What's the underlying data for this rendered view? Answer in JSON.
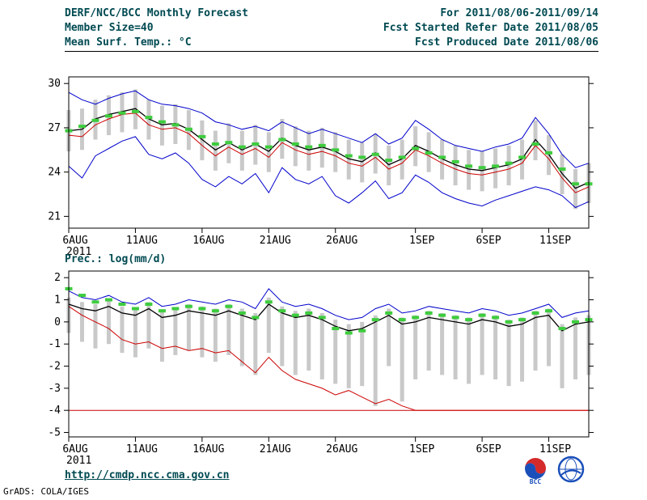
{
  "header": {
    "title": "DERF/NCC/BCC Monthly Forecast",
    "member_size": "Member Size=40",
    "var_label": "Mean Surf. Temp.: °C",
    "for_range": "For 2011/08/06-2011/09/14",
    "fcst_started": "Fcst Started Refer Date 2011/08/05",
    "fcst_produced": "Fcst Produced Date 2011/08/06"
  },
  "panel2_label": "Prec.: log(mm/d)",
  "footer": {
    "link": "http://cmdp.ncc.cma.gov.cn",
    "grads_credit": "GrADS: COLA/IGES",
    "bcc_logo_label": "BCC"
  },
  "colors": {
    "header_text": "#004a52",
    "spread_bar": "#c9c9c9",
    "envelope_blue": "#0000cc",
    "control_red": "#cc0000",
    "mean_black": "#000000",
    "obs_green": "#3ecc3e"
  },
  "chart_data": [
    {
      "type": "line",
      "name": "temp",
      "title": "Mean Surf. Temp.: °C",
      "n_points": 40,
      "ylim": [
        20.2,
        30.45
      ],
      "yticks": [
        21,
        24,
        27,
        30
      ],
      "x_tick_labels": [
        "6AUG",
        "11AUG",
        "16AUG",
        "21AUG",
        "26AUG",
        "1SEP",
        "6SEP",
        "11SEP"
      ],
      "x_tick_positions": [
        0,
        5,
        10,
        15,
        20,
        26,
        31,
        36
      ],
      "x_year_label": "2011",
      "legend_note": "gray bars = ensemble spread, blue = max/min envelope, black = ensemble mean, red = control run, green dashes = calibrated mean",
      "bars": {
        "color": "#c9c9c9",
        "high": [
          28.2,
          28.3,
          28.9,
          29.2,
          29.4,
          29.6,
          28.9,
          28.5,
          28.6,
          28.2,
          27.5,
          26.8,
          27.3,
          26.8,
          27.2,
          26.7,
          27.6,
          27.1,
          26.8,
          27.0,
          26.7,
          26.2,
          26.0,
          26.6,
          25.8,
          26.2,
          27.1,
          26.7,
          26.2,
          25.8,
          25.5,
          25.4,
          25.6,
          25.8,
          26.2,
          27.5,
          26.5,
          25.2,
          24.2,
          24.6
        ],
        "low": [
          25.4,
          25.5,
          26.2,
          26.5,
          26.7,
          26.9,
          26.2,
          25.8,
          25.9,
          25.5,
          24.8,
          24.1,
          24.6,
          24.1,
          24.5,
          24.0,
          24.9,
          24.4,
          24.1,
          24.3,
          24.0,
          23.5,
          23.3,
          23.9,
          23.1,
          23.5,
          24.4,
          24.0,
          23.5,
          23.1,
          22.8,
          22.7,
          22.9,
          23.1,
          23.5,
          24.8,
          23.8,
          22.5,
          21.5,
          21.9
        ]
      },
      "series": [
        {
          "name": "ens-max",
          "color": "#0000cc",
          "width": 1,
          "values": [
            29.4,
            28.9,
            28.6,
            29.0,
            29.3,
            29.5,
            28.9,
            28.6,
            28.5,
            28.3,
            28.0,
            27.4,
            27.2,
            26.9,
            27.1,
            26.8,
            27.4,
            27.0,
            26.6,
            26.9,
            26.6,
            26.3,
            26.0,
            26.6,
            25.9,
            26.3,
            27.5,
            26.9,
            26.2,
            25.8,
            25.6,
            25.4,
            25.7,
            25.9,
            26.3,
            27.7,
            26.6,
            25.2,
            24.3,
            24.6
          ]
        },
        {
          "name": "ens-min",
          "color": "#0000cc",
          "width": 1,
          "values": [
            24.4,
            23.6,
            25.1,
            25.6,
            26.1,
            26.4,
            25.2,
            24.9,
            25.3,
            24.6,
            23.5,
            23.0,
            23.7,
            23.2,
            23.9,
            22.6,
            24.3,
            23.5,
            23.2,
            23.7,
            22.4,
            21.9,
            22.6,
            23.4,
            22.2,
            22.6,
            23.8,
            23.3,
            22.6,
            22.2,
            21.9,
            21.7,
            22.1,
            22.4,
            22.7,
            23.0,
            22.8,
            22.4,
            21.6,
            22.0
          ]
        },
        {
          "name": "control",
          "color": "#cc0000",
          "width": 1,
          "values": [
            26.5,
            26.4,
            27.2,
            27.6,
            27.9,
            28.0,
            27.2,
            26.9,
            27.0,
            26.6,
            25.8,
            25.1,
            25.7,
            25.2,
            25.6,
            25.0,
            26.0,
            25.5,
            25.2,
            25.4,
            25.1,
            24.6,
            24.4,
            25.0,
            24.2,
            24.6,
            25.5,
            25.1,
            24.6,
            24.2,
            23.9,
            23.8,
            24.0,
            24.2,
            24.6,
            25.8,
            24.9,
            23.6,
            22.6,
            23.0
          ]
        },
        {
          "name": "ens-mean",
          "color": "#000000",
          "width": 1.3,
          "values": [
            26.8,
            26.9,
            27.6,
            27.9,
            28.1,
            28.3,
            27.6,
            27.2,
            27.3,
            26.9,
            26.2,
            25.5,
            26.0,
            25.5,
            25.9,
            25.4,
            26.3,
            25.8,
            25.5,
            25.7,
            25.4,
            24.9,
            24.7,
            25.3,
            24.5,
            24.9,
            25.8,
            25.4,
            24.9,
            24.5,
            24.2,
            24.1,
            24.3,
            24.5,
            24.9,
            26.2,
            25.2,
            23.9,
            22.9,
            23.3
          ]
        },
        {
          "name": "calibrated-mean",
          "color": "#3ecc3e",
          "style": "dash",
          "width": 4,
          "values": [
            26.8,
            27.1,
            27.5,
            27.8,
            28.0,
            28.1,
            27.7,
            27.4,
            27.2,
            26.9,
            26.4,
            25.9,
            26.0,
            25.7,
            25.9,
            25.7,
            26.2,
            25.9,
            25.7,
            25.8,
            25.5,
            25.1,
            25.0,
            25.2,
            24.8,
            25.0,
            25.6,
            25.3,
            25.0,
            24.7,
            24.4,
            24.3,
            24.4,
            24.6,
            25.0,
            25.9,
            25.3,
            24.2,
            23.2,
            23.2
          ]
        }
      ]
    },
    {
      "type": "line",
      "name": "precip",
      "title": "Prec.: log(mm/d)",
      "n_points": 40,
      "ylim": [
        -5.2,
        2.3
      ],
      "yticks": [
        -5,
        -4,
        -3,
        -2,
        -1,
        0,
        1,
        2
      ],
      "x_tick_labels": [
        "6AUG",
        "11AUG",
        "16AUG",
        "21AUG",
        "26AUG",
        "1SEP",
        "6SEP",
        "11SEP"
      ],
      "x_tick_positions": [
        0,
        5,
        10,
        15,
        20,
        26,
        31,
        36
      ],
      "x_year_label": "2011",
      "floor_line": {
        "color": "#cc0000",
        "value": -4
      },
      "bars": {
        "color": "#c9c9c9",
        "high": [
          1.1,
          0.9,
          0.8,
          1.0,
          0.7,
          0.6,
          0.9,
          0.5,
          0.6,
          0.8,
          0.7,
          0.6,
          0.8,
          0.6,
          0.4,
          1.1,
          0.7,
          0.5,
          0.6,
          0.4,
          0.1,
          -0.1,
          0.0,
          0.3,
          0.6,
          0.2,
          0.3,
          0.5,
          0.4,
          0.3,
          0.2,
          0.4,
          0.3,
          0.1,
          0.2,
          0.5,
          0.6,
          -0.1,
          0.2,
          0.3
        ],
        "low": [
          -0.5,
          -0.9,
          -1.2,
          -1.0,
          -1.4,
          -1.6,
          -1.2,
          -1.8,
          -1.5,
          -1.3,
          -1.6,
          -1.8,
          -1.5,
          -2.0,
          -2.4,
          -1.4,
          -2.0,
          -2.4,
          -2.2,
          -2.6,
          -2.8,
          -3.0,
          -2.9,
          -3.8,
          -2.0,
          -3.6,
          -2.6,
          -2.2,
          -2.4,
          -2.6,
          -2.8,
          -2.4,
          -2.6,
          -2.9,
          -2.7,
          -2.2,
          -2.0,
          -3.0,
          -2.6,
          -2.4
        ]
      },
      "series": [
        {
          "name": "ens-max",
          "color": "#0000cc",
          "width": 1,
          "values": [
            1.4,
            1.1,
            1.0,
            1.2,
            0.9,
            0.8,
            1.1,
            0.7,
            0.8,
            1.0,
            0.9,
            0.8,
            1.0,
            0.9,
            0.6,
            1.5,
            0.9,
            0.7,
            0.8,
            0.6,
            0.3,
            0.1,
            0.2,
            0.6,
            0.8,
            0.4,
            0.5,
            0.7,
            0.6,
            0.5,
            0.4,
            0.6,
            0.5,
            0.3,
            0.4,
            0.6,
            0.8,
            0.2,
            0.4,
            0.5
          ]
        },
        {
          "name": "control",
          "color": "#cc0000",
          "width": 1,
          "values": [
            0.7,
            0.3,
            0.0,
            -0.3,
            -0.8,
            -1.0,
            -0.9,
            -1.2,
            -1.1,
            -1.3,
            -1.2,
            -1.4,
            -1.3,
            -1.8,
            -2.3,
            -1.6,
            -2.2,
            -2.6,
            -2.8,
            -3.0,
            -3.3,
            -3.1,
            -3.4,
            -3.7,
            -3.5,
            -3.8,
            -4.0,
            -4.0,
            -4.0,
            -4.0,
            -4.0,
            -4.0,
            -4.0,
            -4.0,
            -4.0,
            -4.0,
            -4.0,
            -4.0,
            -4.0,
            -4.0
          ]
        },
        {
          "name": "ens-mean",
          "color": "#000000",
          "width": 1.3,
          "values": [
            0.8,
            0.6,
            0.5,
            0.7,
            0.4,
            0.3,
            0.6,
            0.2,
            0.3,
            0.5,
            0.4,
            0.3,
            0.5,
            0.3,
            0.1,
            0.8,
            0.4,
            0.2,
            0.3,
            0.1,
            -0.2,
            -0.4,
            -0.3,
            0.0,
            0.3,
            -0.1,
            0.0,
            0.2,
            0.1,
            0.0,
            -0.1,
            0.1,
            0.0,
            -0.2,
            -0.1,
            0.2,
            0.3,
            -0.4,
            -0.1,
            0.0
          ]
        },
        {
          "name": "calibrated-mean",
          "color": "#3ecc3e",
          "style": "dash",
          "width": 4,
          "values": [
            1.5,
            1.2,
            0.9,
            1.0,
            0.8,
            0.6,
            0.8,
            0.5,
            0.6,
            0.7,
            0.6,
            0.5,
            0.7,
            0.4,
            0.2,
            0.9,
            0.5,
            0.3,
            0.4,
            0.2,
            -0.3,
            -0.5,
            -0.4,
            0.1,
            0.4,
            0.1,
            0.2,
            0.4,
            0.3,
            0.2,
            0.1,
            0.3,
            0.2,
            0.0,
            0.1,
            0.4,
            0.5,
            -0.3,
            0.0,
            0.1
          ]
        }
      ]
    }
  ]
}
